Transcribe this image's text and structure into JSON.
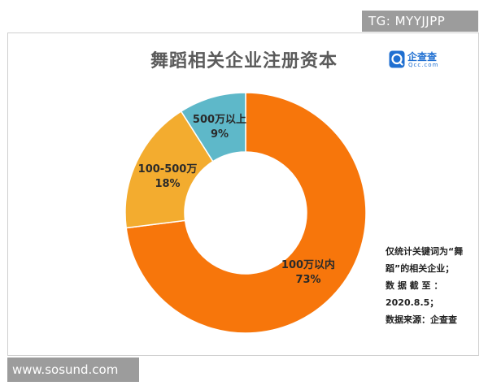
{
  "watermark_top": "TG: MYYJJPP",
  "watermark_bottom": "www.sosund.com",
  "logo": {
    "name_cn": "企查查",
    "name_en": "Qcc.com"
  },
  "notes": [
    "仅统计关键词为“舞",
    "蹈”的相关企业；",
    "数 据 截 至 ：",
    "2020.8.5；",
    "数据来源：企查查"
  ],
  "chart_data": {
    "type": "pie",
    "style": "donut",
    "title": "舞蹈相关企业注册资本",
    "slices": [
      {
        "label": "100万以内",
        "value": 73,
        "value_label": "73%",
        "color": "#f7760b"
      },
      {
        "label": "100-500万",
        "value": 18,
        "value_label": "18%",
        "color": "#f3ac2f"
      },
      {
        "label": "500万以上",
        "value": 9,
        "value_label": "9%",
        "color": "#5eb8c9"
      }
    ]
  }
}
